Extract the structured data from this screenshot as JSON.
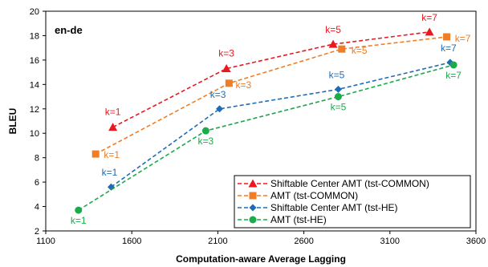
{
  "chart_data": {
    "type": "line",
    "title": "",
    "panel_label": "en-de",
    "xlabel": "Computation-aware Average Lagging",
    "ylabel": "BLEU",
    "xlim": [
      1100,
      3600
    ],
    "ylim": [
      2,
      20
    ],
    "xticks": [
      1100,
      1600,
      2100,
      2600,
      3100,
      3600
    ],
    "yticks": [
      2,
      4,
      6,
      8,
      10,
      12,
      14,
      16,
      18,
      20
    ],
    "grid": false,
    "legend_position": "bottom-right",
    "series": [
      {
        "name": "Shiftable Center AMT (tst-COMMON)",
        "color": "#e8191f",
        "marker": "triangle",
        "x": [
          1490,
          2150,
          2770,
          3330
        ],
        "y": [
          10.5,
          15.3,
          17.3,
          18.3
        ],
        "labels": [
          "k=1",
          "k=3",
          "k=5",
          "k=7"
        ]
      },
      {
        "name": "AMT (tst-COMMON)",
        "color": "#ef7d26",
        "marker": "square",
        "x": [
          1390,
          2165,
          2820,
          3430
        ],
        "y": [
          8.3,
          14.1,
          16.9,
          17.9
        ],
        "labels": [
          "k=1",
          "k=3",
          "k=5",
          "k=7"
        ]
      },
      {
        "name": "Shiftable Center AMT (tst-HE)",
        "color": "#1f6cb4",
        "marker": "diamond",
        "x": [
          1480,
          2110,
          2800,
          3450
        ],
        "y": [
          5.6,
          12.0,
          13.6,
          15.8
        ],
        "labels": [
          "k=1",
          "k=3",
          "k=5",
          "k=7"
        ]
      },
      {
        "name": "AMT (tst-HE)",
        "color": "#1aab4b",
        "marker": "circle",
        "x": [
          1290,
          2030,
          2800,
          3470
        ],
        "y": [
          3.7,
          10.2,
          13.0,
          15.6
        ],
        "labels": [
          "k=1",
          "k=3",
          "k=5",
          "k=7"
        ]
      }
    ]
  }
}
